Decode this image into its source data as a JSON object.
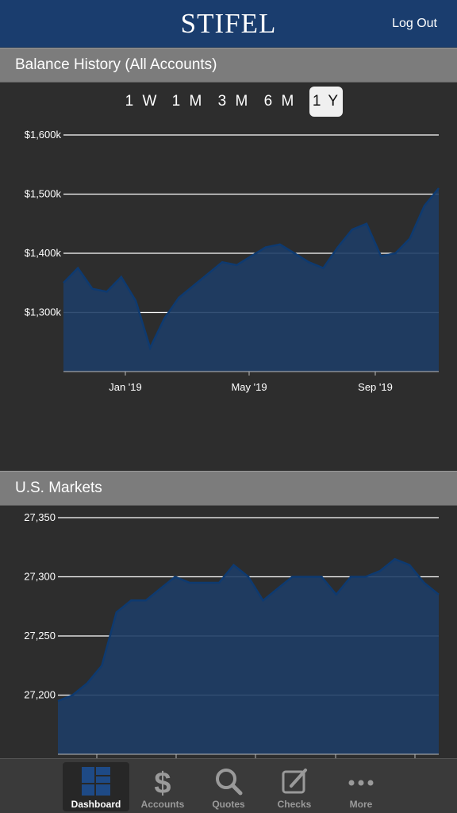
{
  "header": {
    "brand": "STIFEL",
    "logout_label": "Log Out"
  },
  "balance_section": {
    "title": "Balance History (All Accounts)",
    "ranges": [
      {
        "label": "1 W",
        "active": false
      },
      {
        "label": "1 M",
        "active": false
      },
      {
        "label": "3 M",
        "active": false
      },
      {
        "label": "6 M",
        "active": false
      },
      {
        "label": "1 Y",
        "active": true
      }
    ]
  },
  "markets_section": {
    "title": "U.S. Markets"
  },
  "colors": {
    "header": "#1a3d6e",
    "area_fill": "#1e3d66",
    "line": "#0e3a70"
  },
  "chart_data": [
    {
      "type": "area",
      "title": "Balance History (All Accounts)",
      "y_ticks": [
        "$1,600k",
        "$1,500k",
        "$1,400k",
        "$1,300k"
      ],
      "x_ticks": [
        "Jan '19",
        "May '19",
        "Sep '19"
      ],
      "ylim": [
        1200,
        1600
      ],
      "x": [
        "2018-10",
        "2018-10",
        "2018-11",
        "2018-11",
        "2018-12",
        "2018-12",
        "2019-01",
        "2019-01",
        "2019-02",
        "2019-02",
        "2019-03",
        "2019-03",
        "2019-04",
        "2019-04",
        "2019-05",
        "2019-05",
        "2019-06",
        "2019-06",
        "2019-07",
        "2019-07",
        "2019-08",
        "2019-08",
        "2019-09",
        "2019-09",
        "2019-10",
        "2019-10",
        "2019-11"
      ],
      "values": [
        1350,
        1375,
        1340,
        1335,
        1360,
        1320,
        1240,
        1290,
        1325,
        1345,
        1365,
        1385,
        1380,
        1395,
        1410,
        1415,
        1400,
        1385,
        1375,
        1410,
        1440,
        1450,
        1395,
        1400,
        1425,
        1480,
        1510
      ],
      "grid": true
    },
    {
      "type": "area",
      "title": "U.S. Markets",
      "y_ticks": [
        "27,350",
        "27,300",
        "27,250",
        "27,200"
      ],
      "ylim": [
        27150,
        27350
      ],
      "values": [
        27195,
        27200,
        27210,
        27225,
        27270,
        27280,
        27280,
        27290,
        27300,
        27295,
        27295,
        27295,
        27310,
        27300,
        27280,
        27290,
        27300,
        27300,
        27300,
        27285,
        27300,
        27300,
        27305,
        27315,
        27310,
        27295,
        27285
      ],
      "grid": true
    }
  ],
  "tabbar": {
    "items": [
      {
        "label": "Dashboard",
        "icon": "dashboard-grid-icon",
        "active": true
      },
      {
        "label": "Accounts",
        "icon": "dollar-icon",
        "active": false
      },
      {
        "label": "Quotes",
        "icon": "magnifier-icon",
        "active": false
      },
      {
        "label": "Checks",
        "icon": "pencil-box-icon",
        "active": false
      },
      {
        "label": "More",
        "icon": "ellipsis-icon",
        "active": false
      }
    ]
  }
}
